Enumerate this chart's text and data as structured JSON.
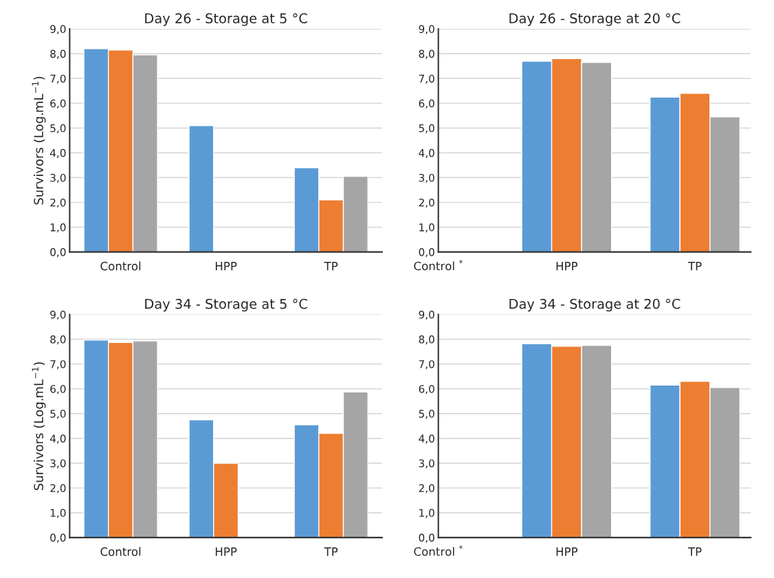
{
  "chart_data": [
    {
      "type": "bar",
      "title": "Day 26 - Storage at 5 °C",
      "ylabel": "Survivors (Log.mL$^{−1}$)",
      "categories": [
        "Control",
        "HPP",
        "TP"
      ],
      "series": [
        {
          "color": "#5b9bd5",
          "values": [
            8.2,
            5.1,
            3.4
          ]
        },
        {
          "color": "#ed7d31",
          "values": [
            8.15,
            null,
            2.1
          ]
        },
        {
          "color": "#a5a5a5",
          "values": [
            7.95,
            null,
            3.05
          ]
        }
      ],
      "ylim": [
        0,
        9
      ],
      "yticks": [
        {
          "value": 0,
          "label": "0,0"
        },
        {
          "value": 1,
          "label": "1,0"
        },
        {
          "value": 2,
          "label": "2,0"
        },
        {
          "value": 3,
          "label": "3,0"
        },
        {
          "value": 4,
          "label": "4,0"
        },
        {
          "value": 5,
          "label": "5,0"
        },
        {
          "value": 6,
          "label": "6,0"
        },
        {
          "value": 7,
          "label": "7,0"
        },
        {
          "value": 8,
          "label": "8,0"
        },
        {
          "value": 9,
          "label": "9,0"
        }
      ],
      "grid": "y"
    },
    {
      "type": "bar",
      "title": "Day 26 - Storage at 20 °C",
      "categories": [
        "Control $^{*}$",
        "HPP",
        "TP"
      ],
      "series": [
        {
          "color": "#5b9bd5",
          "values": [
            null,
            7.7,
            6.25
          ]
        },
        {
          "color": "#ed7d31",
          "values": [
            null,
            7.8,
            6.4
          ]
        },
        {
          "color": "#a5a5a5",
          "values": [
            null,
            7.65,
            5.45
          ]
        }
      ],
      "ylim": [
        0,
        9
      ],
      "yticks": [
        {
          "value": 0,
          "label": "0,0"
        },
        {
          "value": 1,
          "label": "1,0"
        },
        {
          "value": 2,
          "label": "2,0"
        },
        {
          "value": 3,
          "label": "3,0"
        },
        {
          "value": 4,
          "label": "4,0"
        },
        {
          "value": 5,
          "label": "5,0"
        },
        {
          "value": 6,
          "label": "6,0"
        },
        {
          "value": 7,
          "label": "7,0"
        },
        {
          "value": 8,
          "label": "8,0"
        },
        {
          "value": 9,
          "label": "9,0"
        }
      ],
      "grid": "y"
    },
    {
      "type": "bar",
      "title": "Day 34 - Storage at 5 °C",
      "ylabel": "Survivors (Log.mL$^{−1}$)",
      "categories": [
        "Control",
        "HPP",
        "TP"
      ],
      "series": [
        {
          "color": "#5b9bd5",
          "values": [
            7.97,
            4.75,
            4.55
          ]
        },
        {
          "color": "#ed7d31",
          "values": [
            7.87,
            3.0,
            4.2
          ]
        },
        {
          "color": "#a5a5a5",
          "values": [
            7.93,
            null,
            5.87
          ]
        }
      ],
      "ylim": [
        0,
        9
      ],
      "yticks": [
        {
          "value": 0,
          "label": "0,0"
        },
        {
          "value": 1,
          "label": "1,0"
        },
        {
          "value": 2,
          "label": "2,0"
        },
        {
          "value": 3,
          "label": "3,0"
        },
        {
          "value": 4,
          "label": "4,0"
        },
        {
          "value": 5,
          "label": "5,0"
        },
        {
          "value": 6,
          "label": "6,0"
        },
        {
          "value": 7,
          "label": "7,0"
        },
        {
          "value": 8,
          "label": "8,0"
        },
        {
          "value": 9,
          "label": "9,0"
        }
      ],
      "grid": "y"
    },
    {
      "type": "bar",
      "title": "Day 34 - Storage at 20 °C",
      "categories": [
        "Control $^{*}$",
        "HPP",
        "TP"
      ],
      "series": [
        {
          "color": "#5b9bd5",
          "values": [
            null,
            7.82,
            6.15
          ]
        },
        {
          "color": "#ed7d31",
          "values": [
            null,
            7.72,
            6.3
          ]
        },
        {
          "color": "#a5a5a5",
          "values": [
            null,
            7.75,
            6.05
          ]
        }
      ],
      "ylim": [
        0,
        9
      ],
      "yticks": [
        {
          "value": 0,
          "label": "0,0"
        },
        {
          "value": 1,
          "label": "1,0"
        },
        {
          "value": 2,
          "label": "2,0"
        },
        {
          "value": 3,
          "label": "3,0"
        },
        {
          "value": 4,
          "label": "4,0"
        },
        {
          "value": 5,
          "label": "5,0"
        },
        {
          "value": 6,
          "label": "6,0"
        },
        {
          "value": 7,
          "label": "7,0"
        },
        {
          "value": 8,
          "label": "8,0"
        },
        {
          "value": 9,
          "label": "9,0"
        }
      ],
      "grid": "y"
    }
  ]
}
